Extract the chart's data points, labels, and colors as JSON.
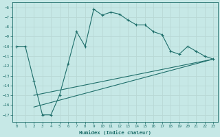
{
  "xlabel": "Humidex (Indice chaleur)",
  "xlim": [
    -0.5,
    23.5
  ],
  "ylim": [
    -17.7,
    -5.5
  ],
  "yticks": [
    -6,
    -7,
    -8,
    -9,
    -10,
    -11,
    -12,
    -13,
    -14,
    -15,
    -16,
    -17
  ],
  "xticks": [
    0,
    1,
    2,
    3,
    4,
    5,
    6,
    7,
    8,
    9,
    10,
    11,
    12,
    13,
    14,
    15,
    16,
    17,
    18,
    19,
    20,
    21,
    22,
    23
  ],
  "bg_color": "#c6e8e6",
  "line_color": "#1e6e6a",
  "grid_color": "#b8d8d5",
  "main_line": {
    "x": [
      0,
      1,
      2,
      3,
      4,
      5,
      6,
      7,
      8,
      9,
      10,
      11,
      12,
      13,
      14,
      15,
      16,
      17,
      18,
      19,
      20,
      21,
      22,
      23
    ],
    "y": [
      -10,
      -10,
      -13.5,
      -17,
      -17,
      -15,
      -11.8,
      -8.5,
      -10,
      -6.2,
      -6.8,
      -6.5,
      -6.7,
      -7.3,
      -7.8,
      -7.8,
      -8.5,
      -8.8,
      -10.5,
      -10.8,
      -10.0,
      -10.5,
      -11.0,
      -11.3
    ]
  },
  "trend1": {
    "x": [
      2,
      23
    ],
    "y": [
      -16.2,
      -11.3
    ]
  },
  "trend2": {
    "x": [
      2,
      23
    ],
    "y": [
      -15.0,
      -11.3
    ]
  }
}
